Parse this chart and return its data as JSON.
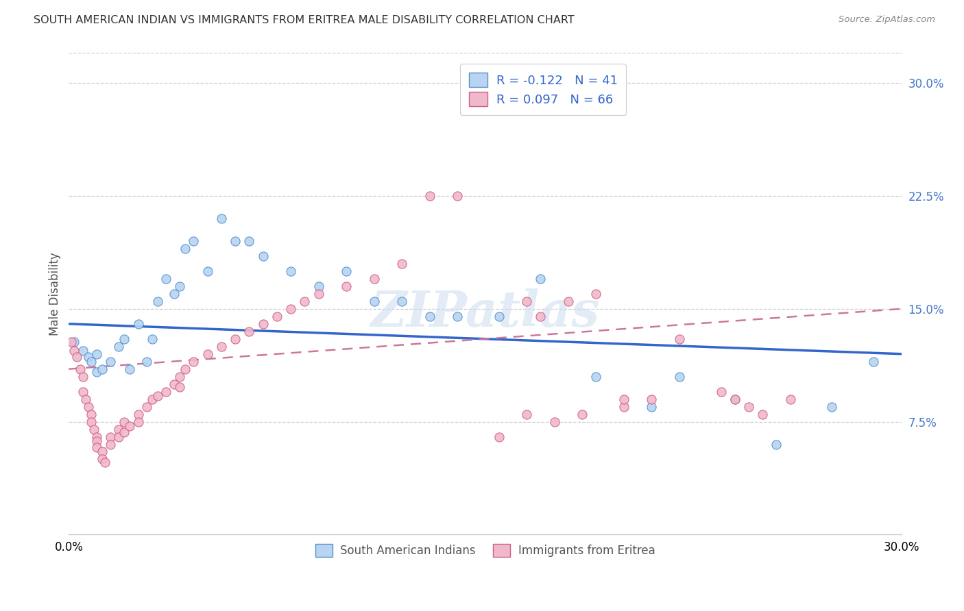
{
  "title": "SOUTH AMERICAN INDIAN VS IMMIGRANTS FROM ERITREA MALE DISABILITY CORRELATION CHART",
  "source": "Source: ZipAtlas.com",
  "ylabel": "Male Disability",
  "xlim": [
    0.0,
    0.3
  ],
  "ylim": [
    0.0,
    0.32
  ],
  "yticks": [
    0.075,
    0.15,
    0.225,
    0.3
  ],
  "ytick_labels": [
    "7.5%",
    "15.0%",
    "22.5%",
    "30.0%"
  ],
  "xtick_vals": [
    0.0,
    0.06,
    0.12,
    0.18,
    0.24,
    0.3
  ],
  "legend_line1": "R = -0.122   N = 41",
  "legend_line2": "R = 0.097   N = 66",
  "legend_label1": "South American Indians",
  "legend_label2": "Immigrants from Eritrea",
  "color_blue_fill": "#b8d4f0",
  "color_blue_edge": "#5090d0",
  "color_pink_fill": "#f0b8cc",
  "color_pink_edge": "#d06080",
  "trend_blue_color": "#3366cc",
  "trend_pink_color": "#cc7799",
  "blue_x": [
    0.002,
    0.005,
    0.007,
    0.008,
    0.01,
    0.01,
    0.012,
    0.015,
    0.018,
    0.02,
    0.022,
    0.025,
    0.028,
    0.03,
    0.032,
    0.035,
    0.038,
    0.04,
    0.042,
    0.045,
    0.05,
    0.055,
    0.06,
    0.065,
    0.07,
    0.08,
    0.09,
    0.1,
    0.11,
    0.12,
    0.13,
    0.14,
    0.155,
    0.17,
    0.19,
    0.21,
    0.22,
    0.24,
    0.255,
    0.275,
    0.29
  ],
  "blue_y": [
    0.128,
    0.122,
    0.118,
    0.115,
    0.12,
    0.108,
    0.11,
    0.115,
    0.125,
    0.13,
    0.11,
    0.14,
    0.115,
    0.13,
    0.155,
    0.17,
    0.16,
    0.165,
    0.19,
    0.195,
    0.175,
    0.21,
    0.195,
    0.195,
    0.185,
    0.175,
    0.165,
    0.175,
    0.155,
    0.155,
    0.145,
    0.145,
    0.145,
    0.17,
    0.105,
    0.085,
    0.105,
    0.09,
    0.06,
    0.085,
    0.115
  ],
  "pink_x": [
    0.001,
    0.002,
    0.003,
    0.004,
    0.005,
    0.005,
    0.006,
    0.007,
    0.008,
    0.008,
    0.009,
    0.01,
    0.01,
    0.01,
    0.012,
    0.012,
    0.013,
    0.015,
    0.015,
    0.018,
    0.018,
    0.02,
    0.02,
    0.022,
    0.025,
    0.025,
    0.028,
    0.03,
    0.032,
    0.035,
    0.038,
    0.04,
    0.04,
    0.042,
    0.045,
    0.05,
    0.055,
    0.06,
    0.065,
    0.07,
    0.075,
    0.08,
    0.085,
    0.09,
    0.1,
    0.11,
    0.12,
    0.13,
    0.14,
    0.155,
    0.165,
    0.175,
    0.185,
    0.2,
    0.21,
    0.22,
    0.235,
    0.24,
    0.245,
    0.25,
    0.26,
    0.165,
    0.17,
    0.18,
    0.19,
    0.2
  ],
  "pink_y": [
    0.128,
    0.122,
    0.118,
    0.11,
    0.105,
    0.095,
    0.09,
    0.085,
    0.08,
    0.075,
    0.07,
    0.065,
    0.062,
    0.058,
    0.055,
    0.05,
    0.048,
    0.065,
    0.06,
    0.07,
    0.065,
    0.075,
    0.068,
    0.072,
    0.08,
    0.075,
    0.085,
    0.09,
    0.092,
    0.095,
    0.1,
    0.098,
    0.105,
    0.11,
    0.115,
    0.12,
    0.125,
    0.13,
    0.135,
    0.14,
    0.145,
    0.15,
    0.155,
    0.16,
    0.165,
    0.17,
    0.18,
    0.225,
    0.225,
    0.065,
    0.08,
    0.075,
    0.08,
    0.085,
    0.09,
    0.13,
    0.095,
    0.09,
    0.085,
    0.08,
    0.09,
    0.155,
    0.145,
    0.155,
    0.16,
    0.09
  ],
  "watermark_text": "ZIPatlas",
  "watermark_color": "#ddeeff"
}
